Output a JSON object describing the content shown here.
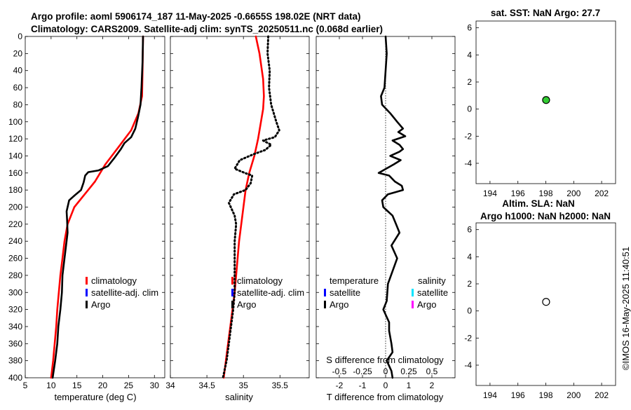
{
  "header": {
    "title_line1": "Argo profile: aoml 5906174_187 11-May-2025 -0.6655S 198.02E (NRT data)",
    "title_line2": "Climatology: CARS2009. Satellite-adj clim: synTS_20250511.nc (0.068d earlier)"
  },
  "footer": {
    "stamp": "©IMOS 16-May-2025 11:40:51"
  },
  "colors": {
    "climatology": "#ff0000",
    "satellite_adj": "#0000ff",
    "argo": "#000000",
    "salinity_satellite": "#00e5ff",
    "salinity_argo": "#ff00ff",
    "sst_marker": "#33cc33"
  },
  "chart_data": [
    {
      "id": "temperature",
      "type": "line",
      "xlabel": "temperature (deg C)",
      "xlim": [
        5,
        32
      ],
      "ylim": [
        0,
        400
      ],
      "yreversed": true,
      "xticks": [
        5,
        10,
        15,
        20,
        25,
        30
      ],
      "yticks": [
        0,
        20,
        40,
        60,
        80,
        100,
        120,
        140,
        160,
        180,
        200,
        220,
        240,
        260,
        280,
        300,
        320,
        340,
        360,
        380,
        400
      ],
      "legend": [
        "climatology",
        "satellite-adj. clim",
        "Argo"
      ],
      "series": [
        {
          "name": "climatology",
          "color": "#ff0000",
          "style": "solid",
          "points": [
            [
              27.8,
              0
            ],
            [
              27.7,
              40
            ],
            [
              27.6,
              70
            ],
            [
              26.9,
              90
            ],
            [
              25.5,
              110
            ],
            [
              23,
              130
            ],
            [
              20.5,
              150
            ],
            [
              18.5,
              170
            ],
            [
              16.5,
              185
            ],
            [
              14.5,
              200
            ],
            [
              13.2,
              220
            ],
            [
              12.6,
              240
            ],
            [
              12.2,
              260
            ],
            [
              11.8,
              280
            ],
            [
              11.5,
              300
            ],
            [
              11.2,
              320
            ],
            [
              11,
              340
            ],
            [
              10.7,
              360
            ],
            [
              10.4,
              380
            ],
            [
              10,
              400
            ]
          ]
        },
        {
          "name": "Argo",
          "color": "#000000",
          "style": "solid",
          "points": [
            [
              27.8,
              0
            ],
            [
              27.7,
              30
            ],
            [
              27.5,
              60
            ],
            [
              27.3,
              80
            ],
            [
              26.8,
              95
            ],
            [
              26.3,
              108
            ],
            [
              25.5,
              118
            ],
            [
              24.2,
              125
            ],
            [
              23.5,
              132
            ],
            [
              22.3,
              142
            ],
            [
              21,
              152
            ],
            [
              19.2,
              157
            ],
            [
              17.2,
              159
            ],
            [
              16.6,
              163
            ],
            [
              16.3,
              171
            ],
            [
              15.8,
              180
            ],
            [
              14.6,
              186
            ],
            [
              13.5,
              192
            ],
            [
              13,
              205
            ],
            [
              13.1,
              215
            ],
            [
              13.2,
              230
            ],
            [
              12.9,
              245
            ],
            [
              12.6,
              260
            ],
            [
              12.2,
              280
            ],
            [
              12.1,
              300
            ],
            [
              11.8,
              320
            ],
            [
              11.4,
              340
            ],
            [
              11.2,
              360
            ],
            [
              10.8,
              380
            ],
            [
              10.3,
              400
            ]
          ]
        }
      ]
    },
    {
      "id": "salinity",
      "type": "line",
      "xlabel": "salinity",
      "xlim": [
        34,
        35.9
      ],
      "ylim": [
        0,
        400
      ],
      "yreversed": true,
      "xticks": [
        34,
        34.5,
        35,
        35.5
      ],
      "legend": [
        "climatology",
        "satellite-adj. clim",
        "Argo"
      ],
      "series": [
        {
          "name": "climatology",
          "color": "#ff0000",
          "style": "solid",
          "points": [
            [
              35.17,
              0
            ],
            [
              35.22,
              20
            ],
            [
              35.27,
              50
            ],
            [
              35.28,
              70
            ],
            [
              35.27,
              85
            ],
            [
              35.24,
              100
            ],
            [
              35.2,
              120
            ],
            [
              35.15,
              140
            ],
            [
              35.08,
              160
            ],
            [
              35.03,
              180
            ],
            [
              35,
              200
            ],
            [
              34.97,
              220
            ],
            [
              34.94,
              240
            ],
            [
              34.92,
              260
            ],
            [
              34.9,
              280
            ],
            [
              34.88,
              300
            ],
            [
              34.85,
              320
            ],
            [
              34.82,
              340
            ],
            [
              34.79,
              360
            ],
            [
              34.76,
              380
            ],
            [
              34.73,
              400
            ]
          ]
        },
        {
          "name": "Argo",
          "color": "#000000",
          "style": "dotted",
          "points": [
            [
              35.34,
              0
            ],
            [
              35.33,
              20
            ],
            [
              35.36,
              40
            ],
            [
              35.35,
              60
            ],
            [
              35.38,
              80
            ],
            [
              35.45,
              100
            ],
            [
              35.49,
              110
            ],
            [
              35.43,
              118
            ],
            [
              35.27,
              122
            ],
            [
              35.38,
              127
            ],
            [
              35.3,
              133
            ],
            [
              35.14,
              138
            ],
            [
              34.95,
              145
            ],
            [
              34.88,
              155
            ],
            [
              35.02,
              160
            ],
            [
              35.12,
              163
            ],
            [
              35.1,
              172
            ],
            [
              35.03,
              180
            ],
            [
              34.87,
              185
            ],
            [
              34.8,
              195
            ],
            [
              34.88,
              210
            ],
            [
              34.9,
              220
            ],
            [
              34.88,
              240
            ],
            [
              34.88,
              300
            ],
            [
              34.86,
              320
            ],
            [
              34.83,
              340
            ],
            [
              34.8,
              360
            ],
            [
              34.77,
              380
            ],
            [
              34.72,
              400
            ]
          ]
        }
      ]
    },
    {
      "id": "difference",
      "type": "line",
      "xlabel": "T difference from climatology",
      "xlabel_top": "S difference from climatology",
      "xlim": [
        -3,
        3
      ],
      "ylim": [
        0,
        400
      ],
      "yreversed": true,
      "xticks": [
        -2,
        -1,
        0,
        1,
        2
      ],
      "xticks_s": [
        "-0.5",
        "-0.25",
        "0",
        "0.25",
        "0.5"
      ],
      "legend_left_title": "temperature",
      "legend_right_title": "salinity",
      "legend_left": [
        "satellite",
        "Argo"
      ],
      "legend_right": [
        "satellite",
        "Argo"
      ],
      "series": [
        {
          "name": "Argo T diff",
          "color": "#000000",
          "style": "solid",
          "points": [
            [
              0,
              0
            ],
            [
              0.05,
              20
            ],
            [
              0,
              40
            ],
            [
              -0.05,
              60
            ],
            [
              -0.2,
              70
            ],
            [
              -0.15,
              80
            ],
            [
              0.2,
              90
            ],
            [
              0.5,
              100
            ],
            [
              0.75,
              108
            ],
            [
              0.55,
              112
            ],
            [
              0.85,
              117
            ],
            [
              0.3,
              122
            ],
            [
              0.6,
              127
            ],
            [
              0.75,
              132
            ],
            [
              0.6,
              135
            ],
            [
              0.2,
              140
            ],
            [
              0.65,
              145
            ],
            [
              0.35,
              150
            ],
            [
              -0.3,
              160
            ],
            [
              0.15,
              163
            ],
            [
              0.4,
              170
            ],
            [
              0.7,
              175
            ],
            [
              0.75,
              180
            ],
            [
              0.1,
              185
            ],
            [
              -0.15,
              192
            ],
            [
              -0.1,
              200
            ],
            [
              0.3,
              210
            ],
            [
              0.45,
              220
            ],
            [
              0.6,
              230
            ],
            [
              0.25,
              245
            ],
            [
              0.5,
              260
            ],
            [
              0.3,
              275
            ],
            [
              0.1,
              290
            ],
            [
              0.05,
              310
            ],
            [
              -0.1,
              320
            ],
            [
              0.15,
              335
            ],
            [
              0.15,
              345
            ],
            [
              0.25,
              360
            ],
            [
              0.3,
              370
            ],
            [
              0.05,
              380
            ],
            [
              0.25,
              392
            ],
            [
              0.3,
              400
            ]
          ]
        }
      ]
    },
    {
      "id": "sst_map",
      "type": "scatter",
      "title": "sat. SST: NaN Argo: 27.7",
      "xlim": [
        193,
        203
      ],
      "ylim": [
        -5.5,
        6.5
      ],
      "xticks": [
        194,
        196,
        198,
        200,
        202
      ],
      "yticks": [
        -4,
        -2,
        0,
        2,
        4,
        6
      ],
      "points": [
        {
          "x": 198.02,
          "y": 0.67,
          "fill": "#33cc33"
        }
      ]
    },
    {
      "id": "sla_map",
      "type": "scatter",
      "title_line1": "Altim. SLA: NaN",
      "title_line2": "Argo h1000: NaN h2000: NaN",
      "xlim": [
        193,
        203
      ],
      "ylim": [
        -5.5,
        6.5
      ],
      "xticks": [
        194,
        196,
        198,
        200,
        202
      ],
      "yticks": [
        -4,
        -2,
        0,
        2,
        4,
        6
      ],
      "points": [
        {
          "x": 198.02,
          "y": 0.67,
          "fill": "#ffffff"
        }
      ]
    }
  ]
}
